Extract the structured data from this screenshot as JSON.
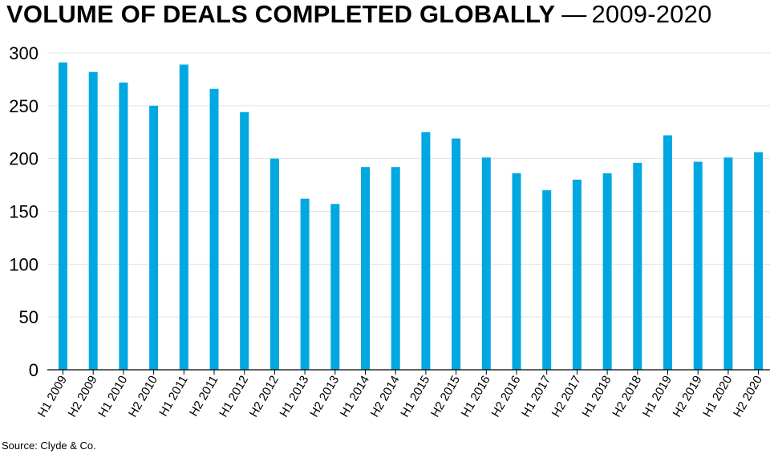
{
  "header": {
    "title_main": "VOLUME OF DEALS COMPLETED GLOBALLY",
    "title_sep": "—",
    "title_sub": "2009-2020"
  },
  "footer": {
    "source": "Source: Clyde & Co."
  },
  "colors": {
    "bar": "#00a8e1",
    "grid": "#e3e3e3",
    "axis": "#000000"
  },
  "chart_data": {
    "type": "bar",
    "title": "VOLUME OF DEALS COMPLETED GLOBALLY — 2009-2020",
    "xlabel": "",
    "ylabel": "",
    "ylim": [
      0,
      300
    ],
    "yticks": [
      0,
      50,
      100,
      150,
      200,
      250,
      300
    ],
    "grid": true,
    "legend": "none",
    "categories": [
      "H1 2009",
      "H2 2009",
      "H1 2010",
      "H2 2010",
      "H1 2011",
      "H2 2011",
      "H1 2012",
      "H2 2012",
      "H1 2013",
      "H2 2013",
      "H1 2014",
      "H2 2014",
      "H1 2015",
      "H2 2015",
      "H1 2016",
      "H2 2016",
      "H1 2017",
      "H2 2017",
      "H1 2018",
      "H2 2018",
      "H1 2019",
      "H2 2019",
      "H1 2020",
      "H2 2020"
    ],
    "values": [
      291,
      282,
      272,
      250,
      289,
      266,
      244,
      200,
      162,
      157,
      192,
      192,
      225,
      219,
      201,
      186,
      170,
      180,
      186,
      196,
      222,
      197,
      201,
      206
    ]
  }
}
